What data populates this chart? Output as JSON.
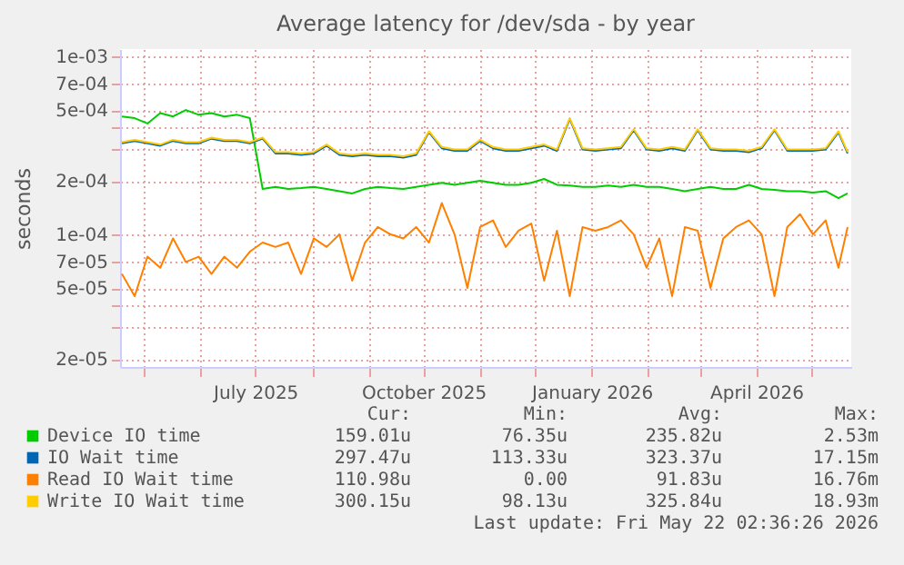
{
  "chart_data": {
    "type": "line",
    "title": "Average latency for /dev/sda - by year",
    "ylabel": "seconds",
    "log": true,
    "grid": true,
    "legend": "bottom",
    "marker": "none",
    "line_style": "solid",
    "x": [
      "2025-04-19",
      "2025-04-26",
      "2025-05-03",
      "2025-05-10",
      "2025-05-17",
      "2025-05-24",
      "2025-05-31",
      "2025-06-07",
      "2025-06-14",
      "2025-06-21",
      "2025-06-28",
      "2025-07-05",
      "2025-07-12",
      "2025-07-19",
      "2025-07-26",
      "2025-08-02",
      "2025-08-09",
      "2025-08-16",
      "2025-08-23",
      "2025-08-30",
      "2025-09-06",
      "2025-09-13",
      "2025-09-20",
      "2025-09-27",
      "2025-10-04",
      "2025-10-11",
      "2025-10-18",
      "2025-10-25",
      "2025-11-01",
      "2025-11-08",
      "2025-11-15",
      "2025-11-22",
      "2025-11-29",
      "2025-12-06",
      "2025-12-13",
      "2025-12-20",
      "2025-12-27",
      "2026-01-03",
      "2026-01-10",
      "2026-01-17",
      "2026-01-24",
      "2026-01-31",
      "2026-02-07",
      "2026-02-14",
      "2026-02-21",
      "2026-02-28",
      "2026-03-07",
      "2026-03-14",
      "2026-03-21",
      "2026-03-28",
      "2026-04-04",
      "2026-04-11",
      "2026-04-18",
      "2026-04-25",
      "2026-05-02",
      "2026-05-09",
      "2026-05-16",
      "2026-05-21"
    ],
    "xlim": [
      "2025-04-18",
      "2026-05-23"
    ],
    "xticks": [
      {
        "value": "2025-05-01",
        "label": null
      },
      {
        "value": "2025-06-01",
        "label": null
      },
      {
        "value": "2025-07-01",
        "label": "July 2025"
      },
      {
        "value": "2025-08-01",
        "label": null
      },
      {
        "value": "2025-09-01",
        "label": null
      },
      {
        "value": "2025-10-01",
        "label": "October 2025"
      },
      {
        "value": "2025-11-01",
        "label": null
      },
      {
        "value": "2025-12-01",
        "label": null
      },
      {
        "value": "2026-01-01",
        "label": "January 2026"
      },
      {
        "value": "2026-02-01",
        "label": null
      },
      {
        "value": "2026-03-01",
        "label": null
      },
      {
        "value": "2026-04-01",
        "label": "April 2026"
      },
      {
        "value": "2026-05-01",
        "label": null
      }
    ],
    "ylim": [
      1.8e-05,
      0.0011
    ],
    "yticks": [
      {
        "value": 2e-05,
        "label": "2e-05"
      },
      {
        "value": 3e-05,
        "label": null
      },
      {
        "value": 4e-05,
        "label": null
      },
      {
        "value": 5e-05,
        "label": "5e-05"
      },
      {
        "value": 7e-05,
        "label": "7e-05"
      },
      {
        "value": 0.0001,
        "label": "1e-04"
      },
      {
        "value": 0.0002,
        "label": "2e-04"
      },
      {
        "value": 0.0003,
        "label": null
      },
      {
        "value": 0.0004,
        "label": null
      },
      {
        "value": 0.0005,
        "label": "5e-04"
      },
      {
        "value": 0.0007,
        "label": "7e-04"
      },
      {
        "value": 0.001,
        "label": "1e-03"
      }
    ],
    "series": [
      {
        "name": "Device IO time",
        "color": "#00cc00",
        "values": [
          0.00046,
          0.00045,
          0.00042,
          0.00048,
          0.00046,
          0.0005,
          0.00047,
          0.00048,
          0.00046,
          0.00047,
          0.00045,
          0.00018,
          0.000185,
          0.00018,
          0.000182,
          0.000185,
          0.00018,
          0.000175,
          0.00017,
          0.00018,
          0.000185,
          0.000182,
          0.00018,
          0.000185,
          0.00019,
          0.000195,
          0.00019,
          0.000195,
          0.0002,
          0.000195,
          0.00019,
          0.00019,
          0.000195,
          0.000205,
          0.00019,
          0.000188,
          0.000185,
          0.000185,
          0.000188,
          0.000185,
          0.00019,
          0.000185,
          0.000185,
          0.00018,
          0.000175,
          0.00018,
          0.000185,
          0.00018,
          0.00018,
          0.00019,
          0.00018,
          0.000178,
          0.000175,
          0.000175,
          0.000172,
          0.000175,
          0.00016,
          0.00017
        ]
      },
      {
        "name": "IO Wait time",
        "color": "#0066b3",
        "values": [
          0.000325,
          0.000335,
          0.000325,
          0.000315,
          0.000335,
          0.000325,
          0.000325,
          0.000345,
          0.000335,
          0.000335,
          0.000325,
          0.000345,
          0.000285,
          0.000285,
          0.00028,
          0.000285,
          0.000315,
          0.00028,
          0.000275,
          0.00028,
          0.000275,
          0.000275,
          0.00027,
          0.00028,
          0.000375,
          0.000305,
          0.000295,
          0.000295,
          0.000335,
          0.000305,
          0.000295,
          0.000295,
          0.000305,
          0.000315,
          0.000295,
          0.000445,
          0.0003,
          0.000295,
          0.0003,
          0.000305,
          0.000385,
          0.0003,
          0.000295,
          0.000305,
          0.000295,
          0.000385,
          0.0003,
          0.000295,
          0.000295,
          0.00029,
          0.000305,
          0.000385,
          0.000295,
          0.000295,
          0.000295,
          0.0003,
          0.000375,
          0.000285
        ]
      },
      {
        "name": "Read IO Wait time",
        "color": "#ff8000",
        "values": [
          6e-05,
          4.5e-05,
          7.5e-05,
          6.5e-05,
          9.5e-05,
          7e-05,
          7.5e-05,
          6e-05,
          7.5e-05,
          6.5e-05,
          8e-05,
          9e-05,
          8.5e-05,
          9e-05,
          6e-05,
          9.5e-05,
          8.5e-05,
          0.0001,
          5.5e-05,
          9e-05,
          0.00011,
          0.0001,
          9.5e-05,
          0.00011,
          9e-05,
          0.00015,
          0.0001,
          5e-05,
          0.00011,
          0.00012,
          8.5e-05,
          0.000105,
          0.000115,
          5.5e-05,
          0.000105,
          4.5e-05,
          0.00011,
          0.000105,
          0.00011,
          0.00012,
          0.0001,
          6.5e-05,
          9.5e-05,
          4.5e-05,
          0.00011,
          0.000105,
          5e-05,
          9.5e-05,
          0.00011,
          0.00012,
          0.0001,
          4.5e-05,
          0.00011,
          0.00013,
          0.0001,
          0.00012,
          6.5e-05,
          0.00011
        ]
      },
      {
        "name": "Write IO Wait time",
        "color": "#ffcc00",
        "values": [
          0.00033,
          0.00034,
          0.00033,
          0.00032,
          0.00034,
          0.00033,
          0.00033,
          0.00035,
          0.00034,
          0.00034,
          0.00033,
          0.00035,
          0.00029,
          0.00029,
          0.000285,
          0.00029,
          0.00032,
          0.000285,
          0.00028,
          0.000285,
          0.00028,
          0.00028,
          0.000275,
          0.000285,
          0.00038,
          0.00031,
          0.0003,
          0.0003,
          0.00034,
          0.00031,
          0.0003,
          0.0003,
          0.00031,
          0.00032,
          0.0003,
          0.00045,
          0.000305,
          0.0003,
          0.000305,
          0.00031,
          0.00039,
          0.000305,
          0.0003,
          0.00031,
          0.0003,
          0.00039,
          0.000305,
          0.0003,
          0.0003,
          0.000295,
          0.00031,
          0.00039,
          0.0003,
          0.0003,
          0.0003,
          0.000305,
          0.00038,
          0.00029
        ]
      }
    ],
    "annotations": [
      "Cur:",
      "Min:",
      "Avg:",
      "Max:",
      "159.01u",
      "76.35u",
      "235.82u",
      "2.53m",
      "297.47u",
      "113.33u",
      "323.37u",
      "17.15m",
      "110.98u",
      "0.00",
      "91.83u",
      "16.76m",
      "300.15u",
      "98.13u",
      "325.84u",
      "18.93m",
      "Last update: Fri May 22 02:36:26 2026"
    ]
  }
}
